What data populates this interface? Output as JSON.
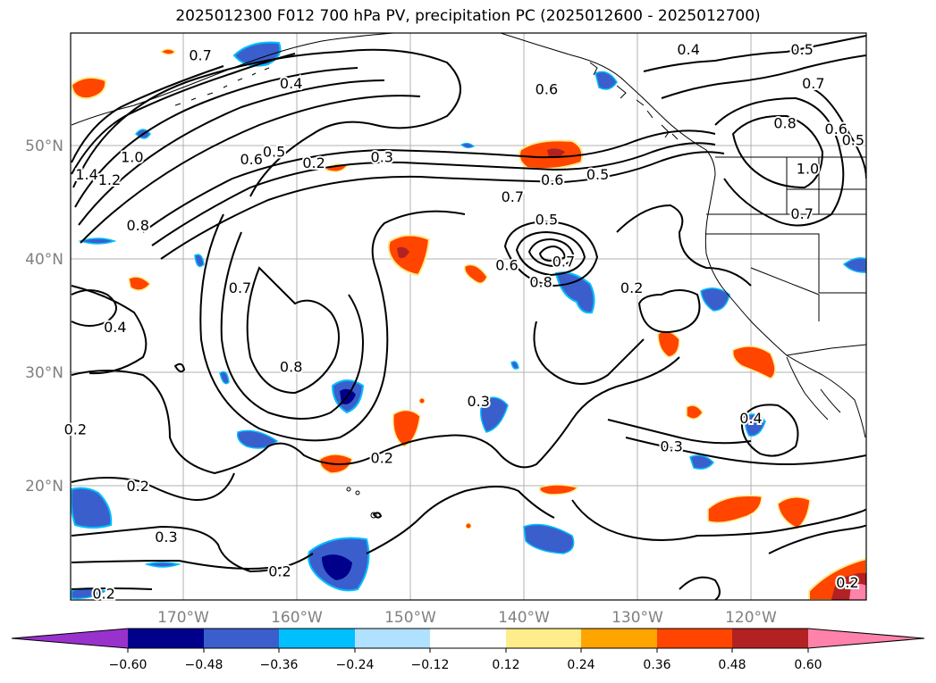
{
  "title": "2025012300 F012 700 hPa PV, precipitation PC (2025012600 - 2025012700)",
  "lat_labels": [
    "50°N",
    "40°N",
    "30°N",
    "20°N"
  ],
  "lon_labels": [
    "170°W",
    "160°W",
    "150°W",
    "140°W",
    "130°W",
    "120°W"
  ],
  "colorbar": {
    "colors": [
      "#9932cc",
      "#00008b",
      "#3a5fcd",
      "#00bfff",
      "#b0e2ff",
      "#ffffff",
      "#ffec8b",
      "#ffa500",
      "#ff4500",
      "#b22222",
      "#ff82ab"
    ],
    "tick_labels": [
      "−0.60",
      "−0.48",
      "−0.36",
      "−0.24",
      "−0.12",
      "0.12",
      "0.24",
      "0.36",
      "0.48",
      "0.60"
    ]
  },
  "contour_labels": [
    {
      "text": "0.7",
      "lon": -168.5,
      "lat": 58.0
    },
    {
      "text": "0.4",
      "lon": -160.5,
      "lat": 55.5
    },
    {
      "text": "0.6",
      "lon": -164.0,
      "lat": 48.8
    },
    {
      "text": "0.5",
      "lon": -162.0,
      "lat": 49.5
    },
    {
      "text": "0.2",
      "lon": -158.5,
      "lat": 48.5
    },
    {
      "text": "0.3",
      "lon": -152.5,
      "lat": 49.0
    },
    {
      "text": "1.4",
      "lon": -178.5,
      "lat": 47.5
    },
    {
      "text": "1.2",
      "lon": -176.5,
      "lat": 47.0
    },
    {
      "text": "1.0",
      "lon": -174.5,
      "lat": 49.0
    },
    {
      "text": "0.8",
      "lon": -174.0,
      "lat": 43.0
    },
    {
      "text": "0.7",
      "lon": -165.0,
      "lat": 37.5
    },
    {
      "text": "0.4",
      "lon": -176.0,
      "lat": 34.0
    },
    {
      "text": "0.8",
      "lon": -160.5,
      "lat": 30.5
    },
    {
      "text": "0.2",
      "lon": -179.5,
      "lat": 25.0
    },
    {
      "text": "0.2",
      "lon": -174.0,
      "lat": 20.0
    },
    {
      "text": "0.3",
      "lon": -171.5,
      "lat": 15.5
    },
    {
      "text": "0.2",
      "lon": -161.5,
      "lat": 12.5
    },
    {
      "text": "0.2",
      "lon": -177.0,
      "lat": 10.5
    },
    {
      "text": "0.2",
      "lon": -152.5,
      "lat": 22.5
    },
    {
      "text": "0.3",
      "lon": -144.0,
      "lat": 27.5
    },
    {
      "text": "0.6",
      "lon": -138.0,
      "lat": 55.0
    },
    {
      "text": "0.7",
      "lon": -141.0,
      "lat": 45.5
    },
    {
      "text": "0.6",
      "lon": -137.5,
      "lat": 47.0
    },
    {
      "text": "0.5",
      "lon": -133.5,
      "lat": 47.5
    },
    {
      "text": "0.5",
      "lon": -138.0,
      "lat": 43.5
    },
    {
      "text": "0.6",
      "lon": -141.5,
      "lat": 39.5
    },
    {
      "text": "0.8",
      "lon": -138.5,
      "lat": 38.0
    },
    {
      "text": "0.7",
      "lon": -136.5,
      "lat": 39.8
    },
    {
      "text": "0.2",
      "lon": -130.5,
      "lat": 37.5
    },
    {
      "text": "0.4",
      "lon": -125.5,
      "lat": 58.5
    },
    {
      "text": "0.5",
      "lon": -115.5,
      "lat": 58.5
    },
    {
      "text": "0.7",
      "lon": -114.5,
      "lat": 55.5
    },
    {
      "text": "0.8",
      "lon": -117.0,
      "lat": 52.0
    },
    {
      "text": "0.6",
      "lon": -112.5,
      "lat": 51.5
    },
    {
      "text": "0.5",
      "lon": -111.0,
      "lat": 50.5
    },
    {
      "text": "1.0",
      "lon": -115.0,
      "lat": 48.0
    },
    {
      "text": "0.7",
      "lon": -115.5,
      "lat": 44.0
    },
    {
      "text": "0.4",
      "lon": -120.0,
      "lat": 26.0
    },
    {
      "text": "0.3",
      "lon": -127.0,
      "lat": 23.5
    },
    {
      "text": "0.2",
      "lon": -111.5,
      "lat": 11.5
    }
  ]
}
